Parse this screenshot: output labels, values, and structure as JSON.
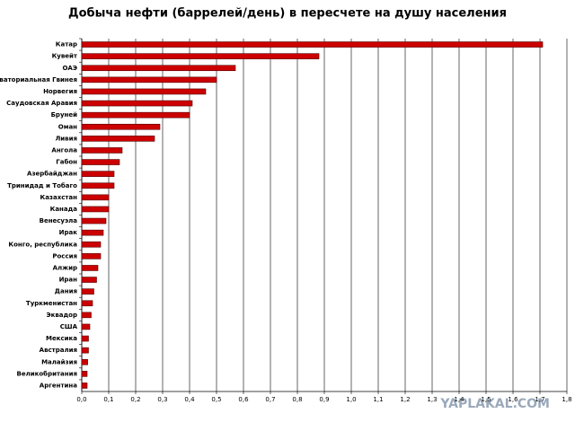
{
  "chart_data": {
    "type": "bar",
    "orientation": "horizontal",
    "title": "Добыча нефти (баррелей/день) в пересчете на душу населения",
    "watermark": "YAPLAKAL.COM",
    "categories": [
      "Катар",
      "Кувейт",
      "ОАЭ",
      "Экваториальная Гвинея",
      "Норвегия",
      "Саудовская Аравия",
      "Бруней",
      "Оман",
      "Ливия",
      "Ангола",
      "Габон",
      "Азербайджан",
      "Тринидад и Тобаго",
      "Казахстан",
      "Канада",
      "Венесуэла",
      "Ирак",
      "Конго, республика",
      "Россия",
      "Алжир",
      "Иран",
      "Дания",
      "Туркменистан",
      "Эквадор",
      "США",
      "Мексика",
      "Австралия",
      "Малайзия",
      "Великобритания",
      "Аргентина"
    ],
    "values": [
      1.71,
      0.88,
      0.57,
      0.5,
      0.46,
      0.41,
      0.4,
      0.29,
      0.27,
      0.15,
      0.14,
      0.12,
      0.12,
      0.1,
      0.1,
      0.09,
      0.08,
      0.07,
      0.07,
      0.06,
      0.055,
      0.045,
      0.04,
      0.035,
      0.03,
      0.025,
      0.025,
      0.022,
      0.02,
      0.02
    ],
    "color": "#cc0000",
    "xlim": [
      0,
      1.8
    ],
    "xticks": [
      {
        "value": 0,
        "label": "0,0"
      },
      {
        "value": 0.1,
        "label": "0,1"
      },
      {
        "value": 0.2,
        "label": "0,2"
      },
      {
        "value": 0.3,
        "label": "0,3"
      },
      {
        "value": 0.4,
        "label": "0,4"
      },
      {
        "value": 0.5,
        "label": "0,5"
      },
      {
        "value": 0.6,
        "label": "0,6"
      },
      {
        "value": 0.7,
        "label": "0,7"
      },
      {
        "value": 0.8,
        "label": "0,8"
      },
      {
        "value": 0.9,
        "label": "0,9"
      },
      {
        "value": 1.0,
        "label": "1,0"
      },
      {
        "value": 1.1,
        "label": "1,1"
      },
      {
        "value": 1.2,
        "label": "1,2"
      },
      {
        "value": 1.3,
        "label": "1,3"
      },
      {
        "value": 1.4,
        "label": "1,4"
      },
      {
        "value": 1.5,
        "label": "1,5"
      },
      {
        "value": 1.6,
        "label": "1,6"
      },
      {
        "value": 1.7,
        "label": "1,7"
      },
      {
        "value": 1.8,
        "label": "1,8"
      }
    ],
    "grid": true
  }
}
